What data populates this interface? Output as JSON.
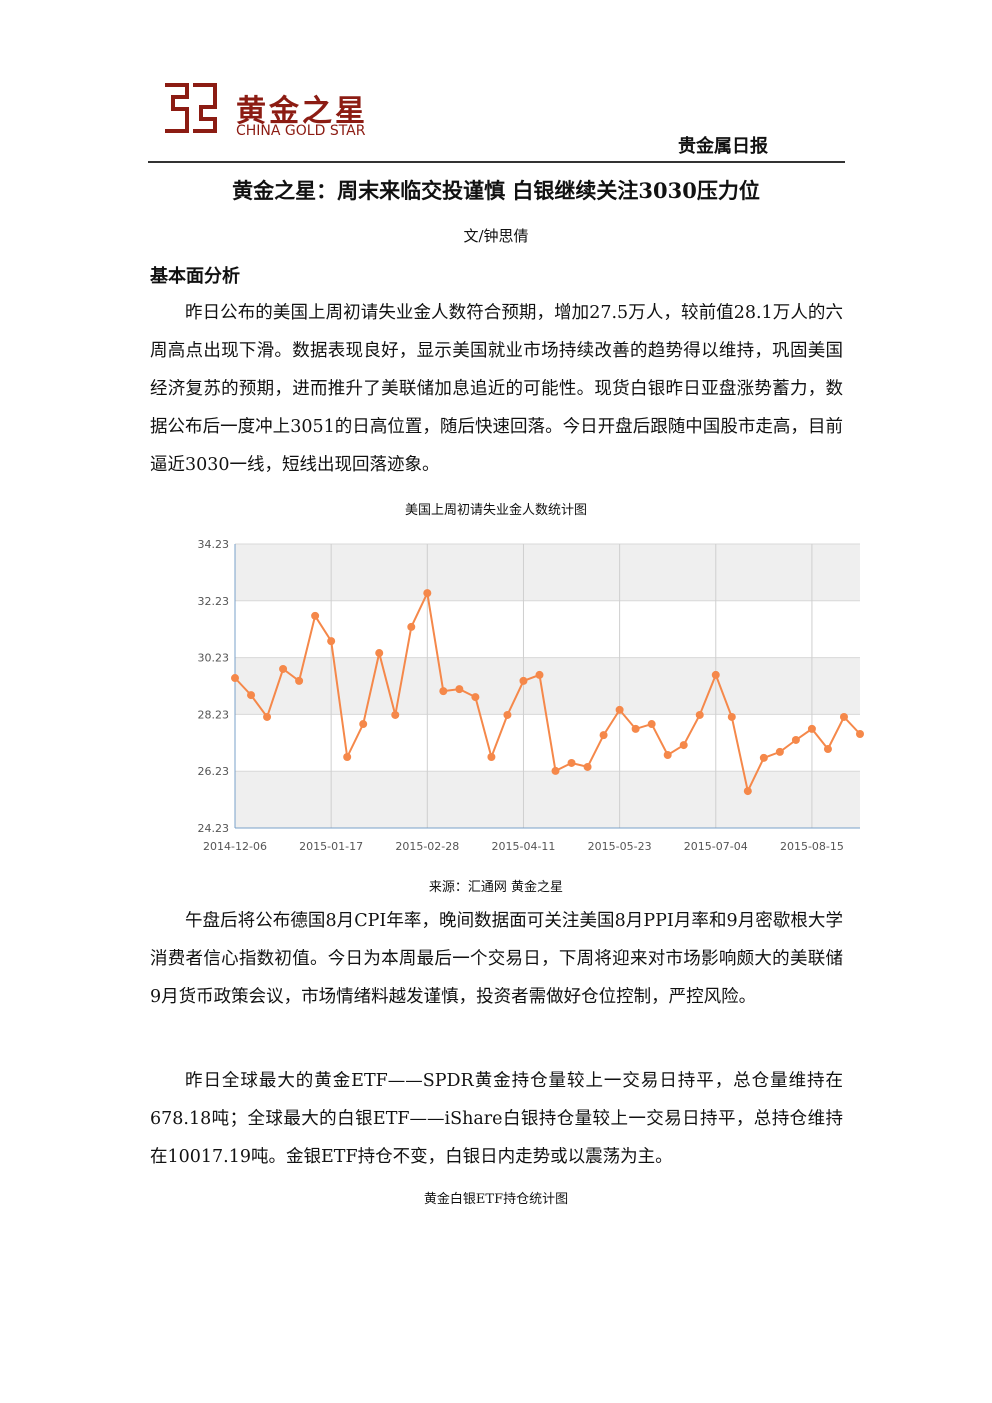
{
  "header": {
    "brand": "黄金之星",
    "brand_en": "CHINA GOLD STAR",
    "report_type": "贵金属日报"
  },
  "title": "黄金之星：周末来临交投谨慎 白银继续关注3030压力位",
  "author": "文/钟思倩",
  "section": "基本面分析",
  "paragraphs": [
    "昨日公布的美国上周初请失业金人数符合预期，增加27.5万人，较前值28.1万人的六周高点出现下滑。数据表现良好，显示美国就业市场持续改善的趋势得以维持，巩固美国经济复苏的预期，进而推升了美联储加息追近的可能性。现货白银昨日亚盘涨势蓄力，数据公布后一度冲上3051的日高位置，随后快速回落。今日开盘后跟随中国股市走高，目前逼近3030一线，短线出现回落迹象。",
    "午盘后将公布德国8月CPI年率，晚间数据面可关注美国8月PPI月率和9月密歇根大学消费者信心指数初值。今日为本周最后一个交易日，下周将迎来对市场影响颇大的美联储9月货币政策会议，市场情绪料越发谨慎，投资者需做好仓位控制，严控风险。",
    "昨日全球最大的黄金ETF——SPDR黄金持仓量较上一交易日持平，总仓量维持在678.18吨；全球最大的白银ETF——iShare白银持仓量较上一交易日持平，总持仓维持在10017.19吨。金银ETF持仓不变，白银日内走势或以震荡为主。"
  ],
  "chart_source": "来源：汇通网 黄金之星",
  "second_chart_title": "黄金白银ETF持仓统计图",
  "chart_data": {
    "type": "line",
    "title": "美国上周初请失业金人数统计图",
    "categories": [
      "2014-12-06",
      null,
      null,
      null,
      null,
      null,
      "2015-01-17",
      null,
      null,
      null,
      null,
      null,
      "2015-02-28",
      null,
      null,
      null,
      null,
      null,
      "2015-04-11",
      null,
      null,
      null,
      null,
      null,
      "2015-05-23",
      null,
      null,
      null,
      null,
      null,
      "2015-07-04",
      null,
      null,
      null,
      null,
      null,
      "2015-08-15",
      null,
      null,
      null
    ],
    "series": [
      {
        "name": "初请失业金人数",
        "color": "#f5884a",
        "values": [
          29.51,
          28.91,
          28.14,
          29.83,
          29.41,
          31.7,
          30.81,
          26.73,
          27.89,
          30.39,
          28.21,
          31.31,
          32.5,
          29.05,
          29.12,
          28.84,
          26.73,
          28.21,
          29.41,
          29.62,
          26.24,
          26.52,
          26.38,
          27.5,
          28.39,
          27.72,
          27.89,
          26.8,
          27.15,
          28.21,
          29.62,
          28.14,
          25.53,
          26.7,
          26.91,
          27.33,
          27.72,
          27.01,
          28.14,
          27.54
        ]
      }
    ],
    "ylim": [
      24.23,
      34.23
    ],
    "yticks": [
      24.23,
      26.23,
      28.23,
      30.23,
      32.23,
      34.23
    ],
    "grid": true
  }
}
